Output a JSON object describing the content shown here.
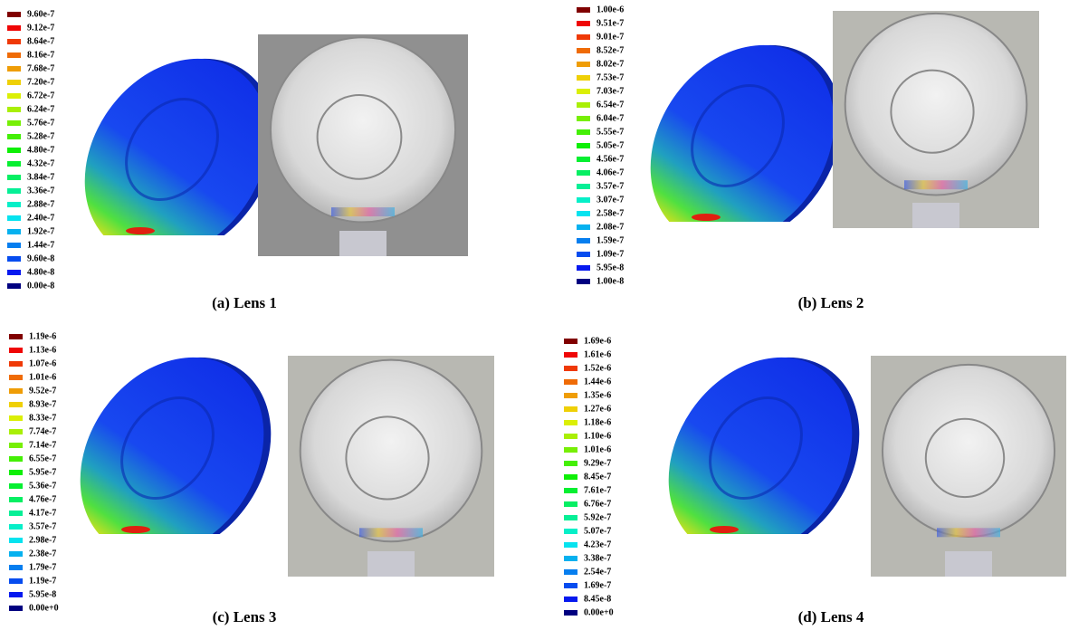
{
  "panels": [
    {
      "legend": [
        "9.60e-7",
        "9.12e-7",
        "8.64e-7",
        "8.16e-7",
        "7.68e-7",
        "7.20e-7",
        "6.72e-7",
        "6.24e-7",
        "5.76e-7",
        "5.28e-7",
        "4.80e-7",
        "4.32e-7",
        "3.84e-7",
        "3.36e-7",
        "2.88e-7",
        "2.40e-7",
        "1.92e-7",
        "1.44e-7",
        "9.60e-8",
        "4.80e-8",
        "0.00e-8"
      ],
      "caption": "(a) Lens 1"
    },
    {
      "legend": [
        "1.00e-6",
        "9.51e-7",
        "9.01e-7",
        "8.52e-7",
        "8.02e-7",
        "7.53e-7",
        "7.03e-7",
        "6.54e-7",
        "6.04e-7",
        "5.55e-7",
        "5.05e-7",
        "4.56e-7",
        "4.06e-7",
        "3.57e-7",
        "3.07e-7",
        "2.58e-7",
        "2.08e-7",
        "1.59e-7",
        "1.09e-7",
        "5.95e-8",
        "1.00e-8"
      ],
      "caption": "(b) Lens 2"
    },
    {
      "legend": [
        "1.19e-6",
        "1.13e-6",
        "1.07e-6",
        "1.01e-6",
        "9.52e-7",
        "8.93e-7",
        "8.33e-7",
        "7.74e-7",
        "7.14e-7",
        "6.55e-7",
        "5.95e-7",
        "5.36e-7",
        "4.76e-7",
        "4.17e-7",
        "3.57e-7",
        "2.98e-7",
        "2.38e-7",
        "1.79e-7",
        "1.19e-7",
        "5.95e-8",
        "0.00e+0"
      ],
      "caption": "(c) Lens 3"
    },
    {
      "legend": [
        "1.69e-6",
        "1.61e-6",
        "1.52e-6",
        "1.44e-6",
        "1.35e-6",
        "1.27e-6",
        "1.18e-6",
        "1.10e-6",
        "1.01e-6",
        "9.29e-7",
        "8.45e-7",
        "7.61e-7",
        "6.76e-7",
        "5.92e-7",
        "5.07e-7",
        "4.23e-7",
        "3.38e-7",
        "2.54e-7",
        "1.69e-7",
        "8.45e-8",
        "0.00e+0"
      ],
      "caption": "(d) Lens 4"
    }
  ]
}
